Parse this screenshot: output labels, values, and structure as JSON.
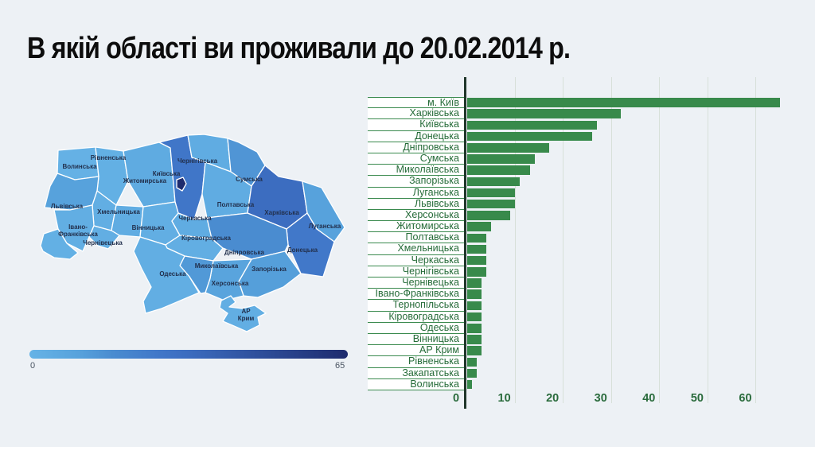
{
  "title": "В якій області ви проживали до 20.02.2014 р.",
  "colors": {
    "background": "#edf1f5",
    "bar": "#388a4b",
    "bar_label_text": "#256b38",
    "row_line": "#3a8a4e",
    "axis_line": "#20362a",
    "tick_text": "#2a6b3c",
    "gridline": "#d7e0d9",
    "map_label_text": "#22304d"
  },
  "chart_data": {
    "type": "bar",
    "orientation": "horizontal",
    "title": "",
    "xlabel": "",
    "ylabel": "",
    "categories": [
      "м. Київ",
      "Харківська",
      "Київська",
      "Донецька",
      "Дніпровська",
      "Сумська",
      "Миколаївська",
      "Запорізька",
      "Луганська",
      "Львівська",
      "Херсонська",
      "Житомирська",
      "Полтавська",
      "Хмельницька",
      "Черкаська",
      "Чернігівська",
      "Чернівецька",
      "Івано-Франківська",
      "Тернопільська",
      "Кіровоградська",
      "Одеська",
      "Вінницька",
      "АР Крим",
      "Рівненська",
      "Закапатська",
      "Волинська"
    ],
    "values": [
      65,
      32,
      27,
      26,
      17,
      14,
      13,
      11,
      10,
      10,
      9,
      5,
      4,
      4,
      4,
      4,
      3,
      3,
      3,
      3,
      3,
      3,
      3,
      2,
      2,
      1
    ],
    "xticks": [
      0,
      10,
      20,
      30,
      40,
      50,
      60
    ],
    "xlim": [
      0,
      69
    ],
    "grid": true,
    "bar_color": "#388a4b",
    "legend_position": "none",
    "color_scale_stops": [
      [
        0,
        "#66b3e6"
      ],
      [
        10,
        "#57a2dc"
      ],
      [
        17,
        "#4a8cd0"
      ],
      [
        27,
        "#4076c8"
      ],
      [
        32,
        "#3c6dc0"
      ],
      [
        65,
        "#1e2b6e"
      ]
    ]
  },
  "legend": {
    "min_label": "0",
    "max_label": "65"
  },
  "map": {
    "labels": {
      "volyn": "Волинська",
      "rivne": "Рівненська",
      "zhytomyr": "Житомирська",
      "kyiv_obl": "Київська",
      "chernihiv": "Чернігівська",
      "sumy": "Сумська",
      "lviv": "Львівська",
      "khmelnytsky": "Хмельницька",
      "poltava": "Полтавська",
      "kharkiv": "Харківська",
      "cherkasy": "Черкаська",
      "ivano_1": "Івано-",
      "ivano_2": "Франківська",
      "vinnytsia": "Вінницька",
      "luhansk": "Луганська",
      "chernivtsi": "Чернівецька",
      "kirovohrad": "Кіровоградська",
      "dnipro": "Дніпровська",
      "donetsk": "Донецька",
      "mykolaiv": "Миколаївська",
      "zaporizhia": "Запорізька",
      "odesa": "Одеська",
      "kherson": "Херсонська",
      "crimea_1": "АР",
      "crimea_2": "Крим"
    }
  }
}
